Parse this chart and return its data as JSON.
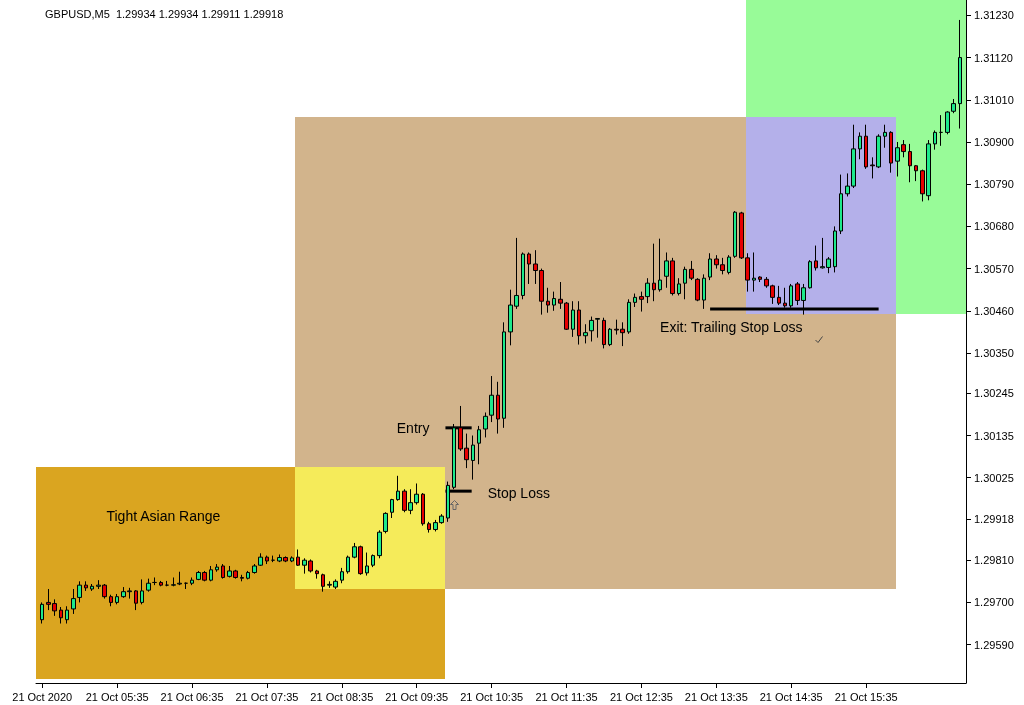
{
  "chart_data": {
    "type": "candlestick",
    "title": "GBPUSD,M5  1.29934 1.29934 1.29911 1.29918",
    "x": [
      "2020-10-21T04:35",
      "2020-10-21T04:40",
      "2020-10-21T04:45",
      "2020-10-21T04:50",
      "2020-10-21T04:55",
      "2020-10-21T05:00",
      "2020-10-21T05:05",
      "2020-10-21T05:10",
      "2020-10-21T05:15",
      "2020-10-21T05:20",
      "2020-10-21T05:25",
      "2020-10-21T05:30",
      "2020-10-21T05:35",
      "2020-10-21T05:40",
      "2020-10-21T05:45",
      "2020-10-21T05:50",
      "2020-10-21T05:55",
      "2020-10-21T06:00",
      "2020-10-21T06:05",
      "2020-10-21T06:10",
      "2020-10-21T06:15",
      "2020-10-21T06:20",
      "2020-10-21T06:25",
      "2020-10-21T06:30",
      "2020-10-21T06:35",
      "2020-10-21T06:40",
      "2020-10-21T06:45",
      "2020-10-21T06:50",
      "2020-10-21T06:55",
      "2020-10-21T07:00",
      "2020-10-21T07:05",
      "2020-10-21T07:10",
      "2020-10-21T07:15",
      "2020-10-21T07:20",
      "2020-10-21T07:25",
      "2020-10-21T07:30",
      "2020-10-21T07:35",
      "2020-10-21T07:40",
      "2020-10-21T07:45",
      "2020-10-21T07:50",
      "2020-10-21T07:55",
      "2020-10-21T08:00",
      "2020-10-21T08:05",
      "2020-10-21T08:10",
      "2020-10-21T08:15",
      "2020-10-21T08:20",
      "2020-10-21T08:25",
      "2020-10-21T08:30",
      "2020-10-21T08:35",
      "2020-10-21T08:40",
      "2020-10-21T08:45",
      "2020-10-21T08:50",
      "2020-10-21T08:55",
      "2020-10-21T09:00",
      "2020-10-21T09:05",
      "2020-10-21T09:10",
      "2020-10-21T09:15",
      "2020-10-21T09:20",
      "2020-10-21T09:25",
      "2020-10-21T09:30",
      "2020-10-21T09:35",
      "2020-10-21T09:40",
      "2020-10-21T09:45",
      "2020-10-21T09:50",
      "2020-10-21T09:55",
      "2020-10-21T10:00",
      "2020-10-21T10:05",
      "2020-10-21T10:10",
      "2020-10-21T10:15",
      "2020-10-21T10:20",
      "2020-10-21T10:25",
      "2020-10-21T10:30",
      "2020-10-21T10:35",
      "2020-10-21T10:40",
      "2020-10-21T10:45",
      "2020-10-21T10:50",
      "2020-10-21T10:55",
      "2020-10-21T11:00",
      "2020-10-21T11:05",
      "2020-10-21T11:10",
      "2020-10-21T11:15",
      "2020-10-21T11:20",
      "2020-10-21T11:25",
      "2020-10-21T11:30",
      "2020-10-21T11:35",
      "2020-10-21T11:40",
      "2020-10-21T11:45",
      "2020-10-21T11:50",
      "2020-10-21T11:55",
      "2020-10-21T12:00",
      "2020-10-21T12:05",
      "2020-10-21T12:10",
      "2020-10-21T12:15",
      "2020-10-21T12:20",
      "2020-10-21T12:25",
      "2020-10-21T12:30",
      "2020-10-21T12:35",
      "2020-10-21T12:40",
      "2020-10-21T12:45",
      "2020-10-21T12:50",
      "2020-10-21T12:55",
      "2020-10-21T13:00",
      "2020-10-21T13:05",
      "2020-10-21T13:10",
      "2020-10-21T13:15",
      "2020-10-21T13:20",
      "2020-10-21T13:25",
      "2020-10-21T13:30",
      "2020-10-21T13:35",
      "2020-10-21T13:40",
      "2020-10-21T13:45",
      "2020-10-21T13:50",
      "2020-10-21T13:55",
      "2020-10-21T14:00",
      "2020-10-21T14:05",
      "2020-10-21T14:10",
      "2020-10-21T14:15",
      "2020-10-21T14:20",
      "2020-10-21T14:25",
      "2020-10-21T14:30",
      "2020-10-21T14:35",
      "2020-10-21T14:40",
      "2020-10-21T14:45",
      "2020-10-21T14:50",
      "2020-10-21T14:55",
      "2020-10-21T15:00",
      "2020-10-21T15:05",
      "2020-10-21T15:10",
      "2020-10-21T15:15",
      "2020-10-21T15:20",
      "2020-10-21T15:25",
      "2020-10-21T15:30",
      "2020-10-21T15:35",
      "2020-10-21T15:40",
      "2020-10-21T15:45",
      "2020-10-21T15:50",
      "2020-10-21T15:55",
      "2020-10-21T16:00",
      "2020-10-21T16:05",
      "2020-10-21T16:10",
      "2020-10-21T16:15",
      "2020-10-21T16:20",
      "2020-10-21T16:25",
      "2020-10-21T16:30",
      "2020-10-21T16:35",
      "2020-10-21T16:40",
      "2020-10-21T16:45",
      "2020-10-21T16:50"
    ],
    "ohlc": [
      [
        1.29655,
        1.297,
        1.29645,
        1.29695
      ],
      [
        1.297,
        1.29735,
        1.2968,
        1.29695
      ],
      [
        1.29697,
        1.29708,
        1.29665,
        1.29678
      ],
      [
        1.2968,
        1.29688,
        1.29645,
        1.2966
      ],
      [
        1.29655,
        1.2969,
        1.29645,
        1.2968
      ],
      [
        1.29683,
        1.29735,
        1.2967,
        1.2971
      ],
      [
        1.29713,
        1.29755,
        1.297,
        1.29745
      ],
      [
        1.29745,
        1.29755,
        1.2973,
        1.29738
      ],
      [
        1.29735,
        1.29748,
        1.2973,
        1.29742
      ],
      [
        1.29742,
        1.29758,
        1.29735,
        1.29745
      ],
      [
        1.29745,
        1.29748,
        1.2971,
        1.29715
      ],
      [
        1.29715,
        1.2972,
        1.2969,
        1.297
      ],
      [
        1.297,
        1.29722,
        1.29695,
        1.29715
      ],
      [
        1.29715,
        1.2974,
        1.29712,
        1.29728
      ],
      [
        1.29728,
        1.29738,
        1.2971,
        1.2973
      ],
      [
        1.2973,
        1.29732,
        1.2968,
        1.29698
      ],
      [
        1.297,
        1.2976,
        1.29695,
        1.2973
      ],
      [
        1.29732,
        1.29762,
        1.29728,
        1.2975
      ],
      [
        1.29752,
        1.29765,
        1.29745,
        1.29752
      ],
      [
        1.29752,
        1.29756,
        1.29742,
        1.29745
      ],
      [
        1.29745,
        1.29756,
        1.29742,
        1.29745
      ],
      [
        1.29745,
        1.29765,
        1.29742,
        1.29746
      ],
      [
        1.29748,
        1.2978,
        1.29745,
        1.2975
      ],
      [
        1.2975,
        1.29752,
        1.29735,
        1.2975
      ],
      [
        1.2975,
        1.29765,
        1.29745,
        1.29758
      ],
      [
        1.2976,
        1.29782,
        1.29758,
        1.29778
      ],
      [
        1.29778,
        1.29782,
        1.29755,
        1.29758
      ],
      [
        1.29758,
        1.29795,
        1.29755,
        1.29785
      ],
      [
        1.29785,
        1.298,
        1.2978,
        1.29792
      ],
      [
        1.29795,
        1.298,
        1.29762,
        1.29765
      ],
      [
        1.29768,
        1.29795,
        1.29765,
        1.29782
      ],
      [
        1.29782,
        1.29785,
        1.29762,
        1.29765
      ],
      [
        1.29765,
        1.29772,
        1.29755,
        1.29763
      ],
      [
        1.29763,
        1.29782,
        1.2976,
        1.29778
      ],
      [
        1.29778,
        1.298,
        1.29775,
        1.29795
      ],
      [
        1.29797,
        1.29828,
        1.29795,
        1.29818
      ],
      [
        1.29818,
        1.29822,
        1.298,
        1.29808
      ],
      [
        1.2981,
        1.29822,
        1.29805,
        1.2981
      ],
      [
        1.29808,
        1.29825,
        1.29805,
        1.29817
      ],
      [
        1.29817,
        1.2982,
        1.29805,
        1.29808
      ],
      [
        1.29808,
        1.2982,
        1.29805,
        1.29816
      ],
      [
        1.29818,
        1.29838,
        1.29795,
        1.29797
      ],
      [
        1.29797,
        1.29815,
        1.29775,
        1.2981
      ],
      [
        1.29808,
        1.29812,
        1.29778,
        1.29782
      ],
      [
        1.29782,
        1.29785,
        1.29762,
        1.29775
      ],
      [
        1.29772,
        1.29775,
        1.29728,
        1.29742
      ],
      [
        1.29745,
        1.29755,
        1.29738,
        1.29747
      ],
      [
        1.2974,
        1.2976,
        1.29735,
        1.29755
      ],
      [
        1.29758,
        1.2979,
        1.2975,
        1.2978
      ],
      [
        1.2978,
        1.29822,
        1.29775,
        1.29818
      ],
      [
        1.29818,
        1.29855,
        1.29815,
        1.29845
      ],
      [
        1.29845,
        1.29848,
        1.29772,
        1.29775
      ],
      [
        1.29777,
        1.2983,
        1.2977,
        1.29795
      ],
      [
        1.29797,
        1.29825,
        1.29792,
        1.29822
      ],
      [
        1.29822,
        1.29888,
        1.29815,
        1.29883
      ],
      [
        1.29885,
        1.29935,
        1.2988,
        1.29932
      ],
      [
        1.29935,
        1.2997,
        1.2992,
        1.29968
      ],
      [
        1.29968,
        1.3003,
        1.29965,
        1.2999
      ],
      [
        1.2999,
        1.29995,
        1.29935,
        1.2994
      ],
      [
        1.2994,
        1.29995,
        1.2993,
        1.2996
      ],
      [
        1.2996,
        1.3001,
        1.29955,
        1.29982
      ],
      [
        1.29982,
        1.29985,
        1.299,
        1.29905
      ],
      [
        1.29905,
        1.2991,
        1.29882,
        1.2989
      ],
      [
        1.2989,
        1.29915,
        1.29885,
        1.29908
      ],
      [
        1.29908,
        1.2993,
        1.29905,
        1.29925
      ],
      [
        1.2992,
        1.30015,
        1.2991,
        1.30005
      ],
      [
        1.3,
        1.30165,
        1.29995,
        1.30155
      ],
      [
        1.30155,
        1.30212,
        1.30095,
        1.301
      ],
      [
        1.30102,
        1.3014,
        1.3005,
        1.30072
      ],
      [
        1.3007,
        1.30135,
        1.3002,
        1.3011
      ],
      [
        1.30115,
        1.3016,
        1.3006,
        1.3015
      ],
      [
        1.30152,
        1.30195,
        1.3013,
        1.30185
      ],
      [
        1.30188,
        1.3029,
        1.3017,
        1.3024
      ],
      [
        1.3024,
        1.30275,
        1.3014,
        1.30178
      ],
      [
        1.3018,
        1.3043,
        1.30155,
        1.30405
      ],
      [
        1.30405,
        1.30515,
        1.3037,
        1.30475
      ],
      [
        1.30472,
        1.3065,
        1.30465,
        1.305
      ],
      [
        1.305,
        1.30612,
        1.3049,
        1.30608
      ],
      [
        1.30608,
        1.30612,
        1.3053,
        1.30582
      ],
      [
        1.30582,
        1.30618,
        1.3053,
        1.30565
      ],
      [
        1.30565,
        1.3057,
        1.3045,
        1.30485
      ],
      [
        1.30485,
        1.3052,
        1.30455,
        1.30475
      ],
      [
        1.30475,
        1.3051,
        1.3046,
        1.30492
      ],
      [
        1.3049,
        1.30535,
        1.30465,
        1.3048
      ],
      [
        1.3048,
        1.30483,
        1.3041,
        1.30412
      ],
      [
        1.30412,
        1.30485,
        1.30392,
        1.30462
      ],
      [
        1.30462,
        1.30485,
        1.30372,
        1.30395
      ],
      [
        1.30395,
        1.30425,
        1.30375,
        1.30403
      ],
      [
        1.30408,
        1.30445,
        1.3038,
        1.30435
      ],
      [
        1.30438,
        1.3044,
        1.3039,
        1.3044
      ],
      [
        1.30435,
        1.30442,
        1.30362,
        1.30372
      ],
      [
        1.30372,
        1.30415,
        1.30368,
        1.30412
      ],
      [
        1.30412,
        1.30437,
        1.30398,
        1.3041
      ],
      [
        1.30412,
        1.3043,
        1.30368,
        1.30403
      ],
      [
        1.30405,
        1.3049,
        1.304,
        1.30482
      ],
      [
        1.30482,
        1.30505,
        1.3047,
        1.30495
      ],
      [
        1.30497,
        1.3051,
        1.30458,
        1.3049
      ],
      [
        1.30497,
        1.30545,
        1.3048,
        1.30532
      ],
      [
        1.30532,
        1.30635,
        1.30485,
        1.30515
      ],
      [
        1.30515,
        1.30648,
        1.3051,
        1.3054
      ],
      [
        1.3055,
        1.30612,
        1.3052,
        1.3059
      ],
      [
        1.3059,
        1.30598,
        1.305,
        1.30505
      ],
      [
        1.30505,
        1.30545,
        1.305,
        1.3053
      ],
      [
        1.30532,
        1.30575,
        1.3049,
        1.30568
      ],
      [
        1.30568,
        1.3059,
        1.3054,
        1.30545
      ],
      [
        1.30542,
        1.30545,
        1.30485,
        1.30488
      ],
      [
        1.30488,
        1.30555,
        1.30465,
        1.30545
      ],
      [
        1.30548,
        1.3061,
        1.3054,
        1.30595
      ],
      [
        1.30595,
        1.30605,
        1.3057,
        1.3058
      ],
      [
        1.3058,
        1.30598,
        1.30555,
        1.30565
      ],
      [
        1.3056,
        1.30605,
        1.30555,
        1.306
      ],
      [
        1.30602,
        1.3072,
        1.30598,
        1.30717
      ],
      [
        1.30715,
        1.30718,
        1.30595,
        1.30598
      ],
      [
        1.30598,
        1.3061,
        1.3051,
        1.3054
      ],
      [
        1.3054,
        1.30612,
        1.3051,
        1.30545
      ],
      [
        1.30548,
        1.3055,
        1.30535,
        1.30542
      ],
      [
        1.30542,
        1.30548,
        1.3052,
        1.30525
      ],
      [
        1.30525,
        1.30528,
        1.30478,
        1.30495
      ],
      [
        1.30495,
        1.30525,
        1.30475,
        1.3048
      ],
      [
        1.3048,
        1.3052,
        1.30468,
        1.30473
      ],
      [
        1.30473,
        1.3053,
        1.30468,
        1.30525
      ],
      [
        1.3053,
        1.30535,
        1.30475,
        1.30487
      ],
      [
        1.30487,
        1.3053,
        1.3045,
        1.3052
      ],
      [
        1.3052,
        1.30592,
        1.30518,
        1.30588
      ],
      [
        1.3059,
        1.3063,
        1.30565,
        1.30572
      ],
      [
        1.30572,
        1.3065,
        1.3057,
        1.30575
      ],
      [
        1.30573,
        1.306,
        1.30558,
        1.30595
      ],
      [
        1.30575,
        1.3068,
        1.3056,
        1.30668
      ],
      [
        1.30668,
        1.30815,
        1.3066,
        1.30765
      ],
      [
        1.30765,
        1.30818,
        1.30758,
        1.30785
      ],
      [
        1.30785,
        1.30945,
        1.3078,
        1.30882
      ],
      [
        1.30882,
        1.30925,
        1.30855,
        1.30915
      ],
      [
        1.30915,
        1.30945,
        1.3083,
        1.30835
      ],
      [
        1.3084,
        1.3086,
        1.30805,
        1.30838
      ],
      [
        1.30835,
        1.3092,
        1.30832,
        1.30915
      ],
      [
        1.30915,
        1.30945,
        1.30885,
        1.30925
      ],
      [
        1.30925,
        1.30928,
        1.3082,
        1.30845
      ],
      [
        1.3085,
        1.309,
        1.3081,
        1.30885
      ],
      [
        1.30893,
        1.30905,
        1.3086,
        1.30875
      ],
      [
        1.30875,
        1.30895,
        1.30795,
        1.30838
      ],
      [
        1.30838,
        1.3084,
        1.30798,
        1.30825
      ],
      [
        1.30825,
        1.30828,
        1.30745,
        1.30765
      ],
      [
        1.3076,
        1.30905,
        1.30748,
        1.30895
      ],
      [
        1.30895,
        1.3093,
        1.3088,
        1.30925
      ],
      [
        1.30925,
        1.3097,
        1.3089,
        1.30925
      ],
      [
        1.30925,
        1.3098,
        1.3092,
        1.30978
      ],
      [
        1.3098,
        1.31012,
        1.30975,
        1.31
      ],
      [
        1.31,
        1.31218,
        1.30935,
        1.3112
      ]
    ],
    "colors": [
      "#1de98b",
      "#e60000",
      "#e60000",
      "#e60000",
      "#1de98b",
      "#1de98b",
      "#1de98b",
      "#e60000",
      "#1de98b",
      "#1de98b",
      "#e60000",
      "#e60000",
      "#1de98b",
      "#1de98b",
      "#1de98b",
      "#e60000",
      "#1de98b",
      "#1de98b",
      "#000000",
      "#e60000",
      "#000000",
      "#1de98b",
      "#1de98b",
      "#000000",
      "#1de98b",
      "#1de98b",
      "#e60000",
      "#1de98b",
      "#1de98b",
      "#e60000",
      "#1de98b",
      "#e60000",
      "#e60000",
      "#1de98b",
      "#1de98b",
      "#1de98b",
      "#e60000",
      "#000000",
      "#1de98b",
      "#e60000",
      "#1de98b",
      "#e60000",
      "#1de98b",
      "#e60000",
      "#e60000",
      "#e60000",
      "#1de98b",
      "#1de98b",
      "#1de98b",
      "#1de98b",
      "#1de98b",
      "#e60000",
      "#1de98b",
      "#1de98b",
      "#1de98b",
      "#1de98b",
      "#1de98b",
      "#1de98b",
      "#e60000",
      "#1de98b",
      "#1de98b",
      "#e60000",
      "#e60000",
      "#1de98b",
      "#1de98b",
      "#1de98b",
      "#1de98b",
      "#e60000",
      "#e60000",
      "#1de98b",
      "#1de98b",
      "#1de98b",
      "#1de98b",
      "#e60000",
      "#1de98b",
      "#1de98b",
      "#1de98b",
      "#1de98b",
      "#e60000",
      "#e60000",
      "#e60000",
      "#e60000",
      "#1de98b",
      "#e60000",
      "#e60000",
      "#1de98b",
      "#e60000",
      "#1de98b",
      "#1de98b",
      "#1de98b",
      "#e60000",
      "#1de98b",
      "#e60000",
      "#e60000",
      "#1de98b",
      "#1de98b",
      "#e60000",
      "#1de98b",
      "#e60000",
      "#1de98b",
      "#1de98b",
      "#e60000",
      "#1de98b",
      "#1de98b",
      "#e60000",
      "#e60000",
      "#1de98b",
      "#1de98b",
      "#e60000",
      "#e60000",
      "#1de98b",
      "#1de98b",
      "#e60000",
      "#e60000",
      "#1de98b",
      "#e60000",
      "#e60000",
      "#e60000",
      "#e60000",
      "#e60000",
      "#1de98b",
      "#e60000",
      "#1de98b",
      "#1de98b",
      "#e60000",
      "#1de98b",
      "#1de98b",
      "#1de98b",
      "#1de98b",
      "#1de98b",
      "#1de98b",
      "#1de98b",
      "#e60000",
      "#e60000",
      "#1de98b",
      "#1de98b",
      "#e60000",
      "#1de98b",
      "#e60000",
      "#e60000",
      "#e60000",
      "#e60000",
      "#1de98b",
      "#1de98b",
      "#000000",
      "#1de98b",
      "#1de98b",
      "#1de98b"
    ],
    "series": [
      {
        "type": "line",
        "x": [
          "2020-10-21T09:58",
          "2020-10-21T10:19"
        ],
        "values": [
          1.30155,
          1.30155
        ],
        "color": "#000000"
      },
      {
        "type": "line",
        "x": [
          "2020-10-21T09:58",
          "2020-10-21T10:19"
        ],
        "values": [
          1.2999,
          1.2999
        ],
        "color": "#000000"
      },
      {
        "type": "line",
        "x": [
          "2020-10-21T13:30",
          "2020-10-21T15:45"
        ],
        "values": [
          1.30465,
          1.30465
        ],
        "color": "#000000"
      }
    ],
    "annotations": [
      "Tight Asian Range",
      {
        "text": "Entry",
        "x": "2020-10-21T09:58",
        "y": 1.30155
      },
      {
        "text": "Stop Loss",
        "x": "2020-10-21T10:19",
        "y": 1.2999
      },
      {
        "text": "Exit: Trailing Stop Loss",
        "x": "2020-10-21T13:30",
        "y": 1.30465
      }
    ],
    "xlim": [
      "2020-10-21T04:30",
      "2020-10-21T16:55"
    ],
    "xticks": [
      {
        "value": "2020-10-21T04:35",
        "label": "21 Oct 2020"
      },
      {
        "value": "2020-10-21T05:35",
        "label": "21 Oct 05:35"
      },
      {
        "value": "2020-10-21T06:35",
        "label": "21 Oct 06:35"
      },
      {
        "value": "2020-10-21T07:35",
        "label": "21 Oct 07:35"
      },
      {
        "value": "2020-10-21T08:35",
        "label": "21 Oct 08:35"
      },
      {
        "value": "2020-10-21T09:35",
        "label": "21 Oct 09:35"
      },
      {
        "value": "2020-10-21T10:35",
        "label": "21 Oct 10:35"
      },
      {
        "value": "2020-10-21T11:35",
        "label": "21 Oct 11:35"
      },
      {
        "value": "2020-10-21T12:35",
        "label": "21 Oct 12:35"
      },
      {
        "value": "2020-10-21T13:35",
        "label": "21 Oct 13:35"
      },
      {
        "value": "2020-10-21T14:35",
        "label": "21 Oct 14:35"
      },
      {
        "value": "2020-10-21T15:35",
        "label": "21 Oct 15:35"
      }
    ],
    "ylim": [
      1.2949,
      1.3127
    ],
    "yticks": [
      {
        "value": 1.2959,
        "label": "1.29590"
      },
      {
        "value": 1.297,
        "label": "1.29700"
      },
      {
        "value": 1.2981,
        "label": "1.29810"
      },
      {
        "value": 1.29918,
        "label": "1.29918"
      },
      {
        "value": 1.30025,
        "label": "1.30025"
      },
      {
        "value": 1.30135,
        "label": "1.30135"
      },
      {
        "value": 1.30245,
        "label": "1.30245"
      },
      {
        "value": 1.3035,
        "label": "1.30350"
      },
      {
        "value": 1.3046,
        "label": "1.30460"
      },
      {
        "value": 1.3057,
        "label": "1.30570"
      },
      {
        "value": 1.3068,
        "label": "1.30680"
      },
      {
        "value": 1.3079,
        "label": "1.30790"
      },
      {
        "value": 1.309,
        "label": "1.30900"
      },
      {
        "value": 1.3101,
        "label": "1.31010"
      },
      {
        "value": 1.3112,
        "label": "1.31120"
      },
      {
        "value": 1.3123,
        "label": "1.31230"
      }
    ]
  }
}
